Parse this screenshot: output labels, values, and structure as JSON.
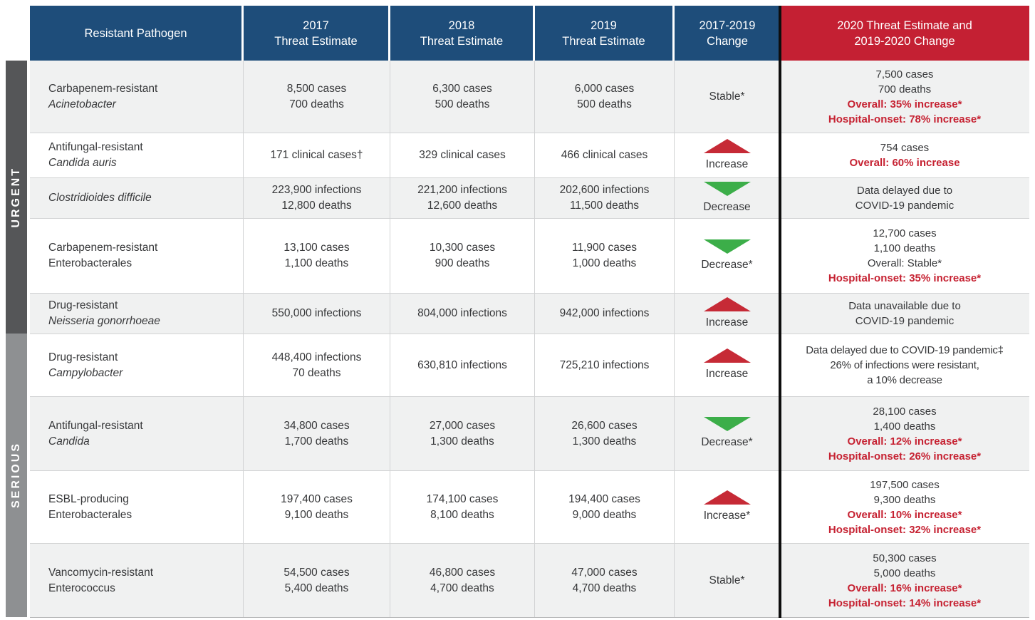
{
  "colors": {
    "header-blue": "#1e4d7a",
    "header-red": "#c42033",
    "emphasis-red": "#c62232",
    "increase-red": "#c62a36",
    "decrease-green": "#3cae49",
    "urgent-gray": "#555658",
    "serious-gray": "#8e9092",
    "row-alt": "#f0f1f1",
    "text-dark": "#37383a",
    "grid-line": "#d2d3d4"
  },
  "chart_data": {
    "type": "table",
    "header": [
      {
        "line1": "Resistant Pathogen",
        "line2": ""
      },
      {
        "line1": "2017",
        "line2": "Threat Estimate"
      },
      {
        "line1": "2018",
        "line2": "Threat Estimate"
      },
      {
        "line1": "2019",
        "line2": "Threat Estimate"
      },
      {
        "line1": "2017-2019",
        "line2": "Change"
      },
      {
        "line1": "2020 Threat Estimate and",
        "line2": "2019-2020 Change"
      }
    ],
    "groups": [
      {
        "label": "URGENT",
        "rows": [
          {
            "pathogen": [
              {
                "text": "Carbapenem-resistant",
                "italic": false
              },
              {
                "text": "Acinetobacter",
                "italic": true
              }
            ],
            "estimate_2017": [
              "8,500 cases",
              "700 deaths"
            ],
            "estimate_2018": [
              "6,300 cases",
              "500 deaths"
            ],
            "estimate_2019": [
              "6,000 cases",
              "500 deaths"
            ],
            "change": {
              "direction": "none",
              "label": "Stable*"
            },
            "estimate_2020": [
              {
                "text": "7,500 cases",
                "emphasis": false
              },
              {
                "text": "700 deaths",
                "emphasis": false
              },
              {
                "text": "Overall: 35% increase*",
                "emphasis": true
              },
              {
                "text": "Hospital-onset: 78% increase*",
                "emphasis": true
              }
            ]
          },
          {
            "pathogen": [
              {
                "text": "Antifungal-resistant",
                "italic": false
              },
              {
                "text": "Candida auris",
                "italic": true
              }
            ],
            "estimate_2017": [
              "171 clinical cases†"
            ],
            "estimate_2018": [
              "329 clinical cases"
            ],
            "estimate_2019": [
              "466 clinical cases"
            ],
            "change": {
              "direction": "up",
              "label": "Increase"
            },
            "estimate_2020": [
              {
                "text": "754 cases",
                "emphasis": false
              },
              {
                "text": "Overall: 60% increase",
                "emphasis": true
              }
            ]
          },
          {
            "pathogen": [
              {
                "text": "Clostridioides difficile",
                "italic": true
              }
            ],
            "estimate_2017": [
              "223,900 infections",
              "12,800 deaths"
            ],
            "estimate_2018": [
              "221,200 infections",
              "12,600 deaths"
            ],
            "estimate_2019": [
              "202,600 infections",
              "11,500 deaths"
            ],
            "change": {
              "direction": "down",
              "label": "Decrease"
            },
            "estimate_2020": [
              {
                "text": "Data delayed due to",
                "emphasis": false
              },
              {
                "text": "COVID-19 pandemic",
                "emphasis": false
              }
            ]
          },
          {
            "pathogen": [
              {
                "text": "Carbapenem-resistant",
                "italic": false
              },
              {
                "text": "Enterobacterales",
                "italic": false
              }
            ],
            "estimate_2017": [
              "13,100 cases",
              "1,100 deaths"
            ],
            "estimate_2018": [
              "10,300 cases",
              "900 deaths"
            ],
            "estimate_2019": [
              "11,900 cases",
              "1,000 deaths"
            ],
            "change": {
              "direction": "down",
              "label": "Decrease*"
            },
            "estimate_2020": [
              {
                "text": "12,700 cases",
                "emphasis": false
              },
              {
                "text": "1,100 deaths",
                "emphasis": false
              },
              {
                "text": "Overall: Stable*",
                "emphasis": false
              },
              {
                "text": "Hospital-onset: 35% increase*",
                "emphasis": true
              }
            ]
          },
          {
            "pathogen": [
              {
                "text": "Drug-resistant",
                "italic": false
              },
              {
                "text": "Neisseria gonorrhoeae",
                "italic": true
              }
            ],
            "estimate_2017": [
              "550,000 infections"
            ],
            "estimate_2018": [
              "804,000 infections"
            ],
            "estimate_2019": [
              "942,000 infections"
            ],
            "change": {
              "direction": "up",
              "label": "Increase"
            },
            "estimate_2020": [
              {
                "text": "Data unavailable due to",
                "emphasis": false
              },
              {
                "text": "COVID-19 pandemic",
                "emphasis": false
              }
            ]
          }
        ]
      },
      {
        "label": "SERIOUS",
        "rows": [
          {
            "pathogen": [
              {
                "text": "Drug-resistant",
                "italic": false
              },
              {
                "text": "Campylobacter",
                "italic": true
              }
            ],
            "estimate_2017": [
              "448,400 infections",
              "70 deaths"
            ],
            "estimate_2018": [
              "630,810 infections"
            ],
            "estimate_2019": [
              "725,210 infections"
            ],
            "change": {
              "direction": "up",
              "label": "Increase"
            },
            "estimate_2020": [
              {
                "text": "Data delayed due to COVID-19 pandemic‡",
                "emphasis": false,
                "small": true
              },
              {
                "text": "26% of infections were resistant,",
                "emphasis": false,
                "small": true
              },
              {
                "text": "a 10% decrease",
                "emphasis": false,
                "small": true
              }
            ]
          },
          {
            "pathogen": [
              {
                "text": "Antifungal-resistant",
                "italic": false
              },
              {
                "text": "Candida",
                "italic": true
              }
            ],
            "estimate_2017": [
              "34,800 cases",
              "1,700 deaths"
            ],
            "estimate_2018": [
              "27,000 cases",
              "1,300 deaths"
            ],
            "estimate_2019": [
              "26,600 cases",
              "1,300 deaths"
            ],
            "change": {
              "direction": "down",
              "label": "Decrease*"
            },
            "estimate_2020": [
              {
                "text": "28,100 cases",
                "emphasis": false
              },
              {
                "text": "1,400 deaths",
                "emphasis": false
              },
              {
                "text": "Overall: 12% increase*",
                "emphasis": true
              },
              {
                "text": "Hospital-onset: 26% increase*",
                "emphasis": true
              }
            ]
          },
          {
            "pathogen": [
              {
                "text": "ESBL-producing",
                "italic": false
              },
              {
                "text": "Enterobacterales",
                "italic": false
              }
            ],
            "estimate_2017": [
              "197,400 cases",
              "9,100 deaths"
            ],
            "estimate_2018": [
              "174,100 cases",
              "8,100 deaths"
            ],
            "estimate_2019": [
              "194,400 cases",
              "9,000 deaths"
            ],
            "change": {
              "direction": "up",
              "label": "Increase*"
            },
            "estimate_2020": [
              {
                "text": "197,500 cases",
                "emphasis": false
              },
              {
                "text": "9,300 deaths",
                "emphasis": false
              },
              {
                "text": "Overall: 10% increase*",
                "emphasis": true
              },
              {
                "text": "Hospital-onset: 32% increase*",
                "emphasis": true
              }
            ]
          },
          {
            "pathogen": [
              {
                "text": "Vancomycin-resistant",
                "italic": false
              },
              {
                "text": "Enterococcus",
                "italic": false
              }
            ],
            "estimate_2017": [
              "54,500 cases",
              "5,400 deaths"
            ],
            "estimate_2018": [
              "46,800 cases",
              "4,700 deaths"
            ],
            "estimate_2019": [
              "47,000 cases",
              "4,700 deaths"
            ],
            "change": {
              "direction": "none",
              "label": "Stable*"
            },
            "estimate_2020": [
              {
                "text": "50,300 cases",
                "emphasis": false
              },
              {
                "text": "5,000 deaths",
                "emphasis": false
              },
              {
                "text": "Overall: 16% increase*",
                "emphasis": true
              },
              {
                "text": "Hospital-onset: 14% increase*",
                "emphasis": true
              }
            ]
          }
        ]
      }
    ]
  }
}
